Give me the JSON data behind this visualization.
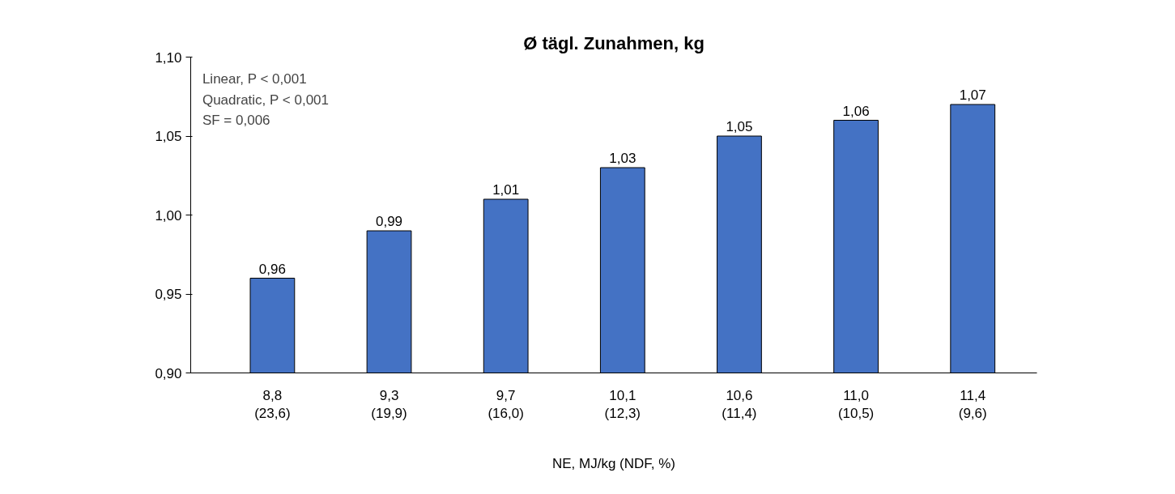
{
  "chart_data": {
    "type": "bar",
    "title": "Ø tägl. Zunahmen, kg",
    "xlabel": "NE, MJ/kg (NDF, %)",
    "categories": [
      "8,8\n(23,6)",
      "9,3\n(19,9)",
      "9,7\n(16,0)",
      "10,1\n(12,3)",
      "10,6\n(11,4)",
      "11,0\n(10,5)",
      "11,4\n(9,6)"
    ],
    "values": [
      0.96,
      0.99,
      1.01,
      1.03,
      1.05,
      1.06,
      1.07
    ],
    "value_labels": [
      "0,96",
      "0,99",
      "1,01",
      "1,03",
      "1,05",
      "1,06",
      "1,07"
    ],
    "color": "#4472c4",
    "ylim": [
      0.9,
      1.1
    ],
    "yticks": [
      {
        "value": 0.9,
        "label": "0,90"
      },
      {
        "value": 0.95,
        "label": "0,95"
      },
      {
        "value": 1.0,
        "label": "1,00"
      },
      {
        "value": 1.05,
        "label": "1,05"
      },
      {
        "value": 1.1,
        "label": "1,10"
      }
    ],
    "annotations": [
      "Linear, P < 0,001",
      "Quadratic, P < 0,001",
      "SF = 0,006"
    ],
    "grid": false
  }
}
